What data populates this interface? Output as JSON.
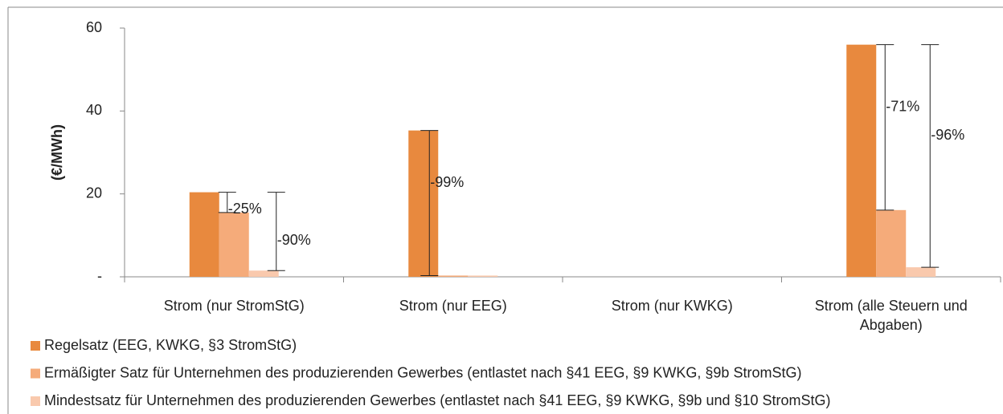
{
  "chart_data": {
    "type": "bar",
    "y_label": "(€/MWh)",
    "categories": [
      "Strom (nur StromStG)",
      "Strom (nur EEG)",
      "Strom (nur KWKG)",
      "Strom (alle Steuern und Abgaben)"
    ],
    "series": [
      {
        "name": "Regelsatz (EEG, KWKG, §3 StromStG)",
        "color": "#e8893e",
        "values": [
          20.4,
          35.3,
          0,
          56.0
        ]
      },
      {
        "name": "Ermäßigter Satz für Unternehmen des produzierenden Gewerbes (entlastet nach §41 EEG, §9 KWKG, §9b StromStG)",
        "color": "#f5ab7a",
        "values": [
          15.5,
          0.3,
          0,
          16.1
        ]
      },
      {
        "name": "Mindestsatz für Unternehmen des produzierenden Gewerbes (entlastet nach §41 EEG, §9 KWKG, §9b und §10 StromStG)",
        "color": "#f9c9ad",
        "values": [
          1.5,
          0.3,
          0,
          2.3
        ]
      }
    ],
    "annotations": [
      "-25%",
      "-90%",
      "-99%",
      "-71%",
      "-96%"
    ],
    "ylim": [
      0,
      60
    ],
    "yticks": [
      {
        "value": 0,
        "label": "-"
      },
      20,
      40,
      60
    ],
    "legend": "bottom-left"
  }
}
